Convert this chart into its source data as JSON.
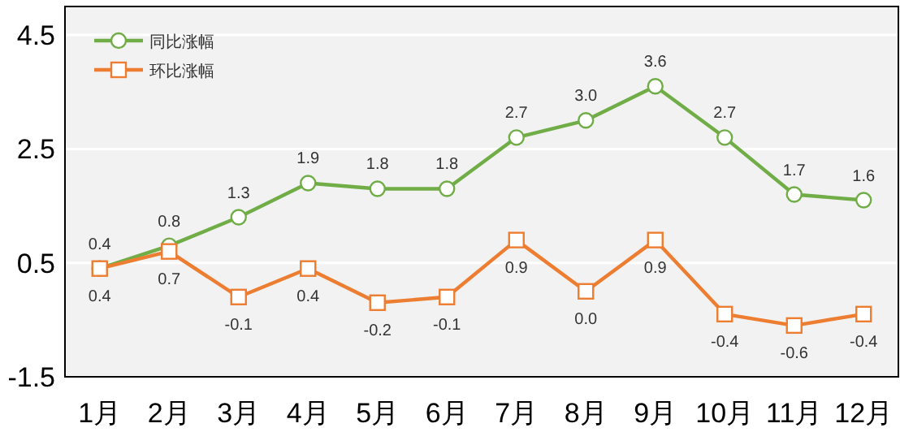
{
  "chart_data": {
    "type": "line",
    "categories": [
      "1月",
      "2月",
      "3月",
      "4月",
      "5月",
      "6月",
      "7月",
      "8月",
      "9月",
      "10月",
      "11月",
      "12月"
    ],
    "series": [
      {
        "name": "同比涨幅",
        "color": "#70ad47",
        "marker": "circle",
        "values": [
          0.4,
          0.8,
          1.3,
          1.9,
          1.8,
          1.8,
          2.7,
          3.0,
          3.6,
          2.7,
          1.7,
          1.6
        ],
        "value_labels": [
          "0.4",
          "0.8",
          "1.3",
          "1.9",
          "1.8",
          "1.8",
          "2.7",
          "3.0",
          "3.6",
          "2.7",
          "1.7",
          "1.6"
        ]
      },
      {
        "name": "环比涨幅",
        "color": "#ed7d31",
        "marker": "square",
        "values": [
          0.4,
          0.7,
          -0.1,
          0.4,
          -0.2,
          -0.1,
          0.9,
          0.0,
          0.9,
          -0.4,
          -0.6,
          -0.4
        ],
        "value_labels": [
          "0.4",
          "0.7",
          "-0.1",
          "0.4",
          "-0.2",
          "-0.1",
          "0.9",
          "0.0",
          "0.9",
          "-0.4",
          "-0.6",
          "-0.4"
        ]
      }
    ],
    "ylim": [
      -1.5,
      5.0
    ],
    "yticks": [
      -1.5,
      0.5,
      2.5,
      4.5
    ],
    "grid": "y",
    "legend": "top left"
  }
}
